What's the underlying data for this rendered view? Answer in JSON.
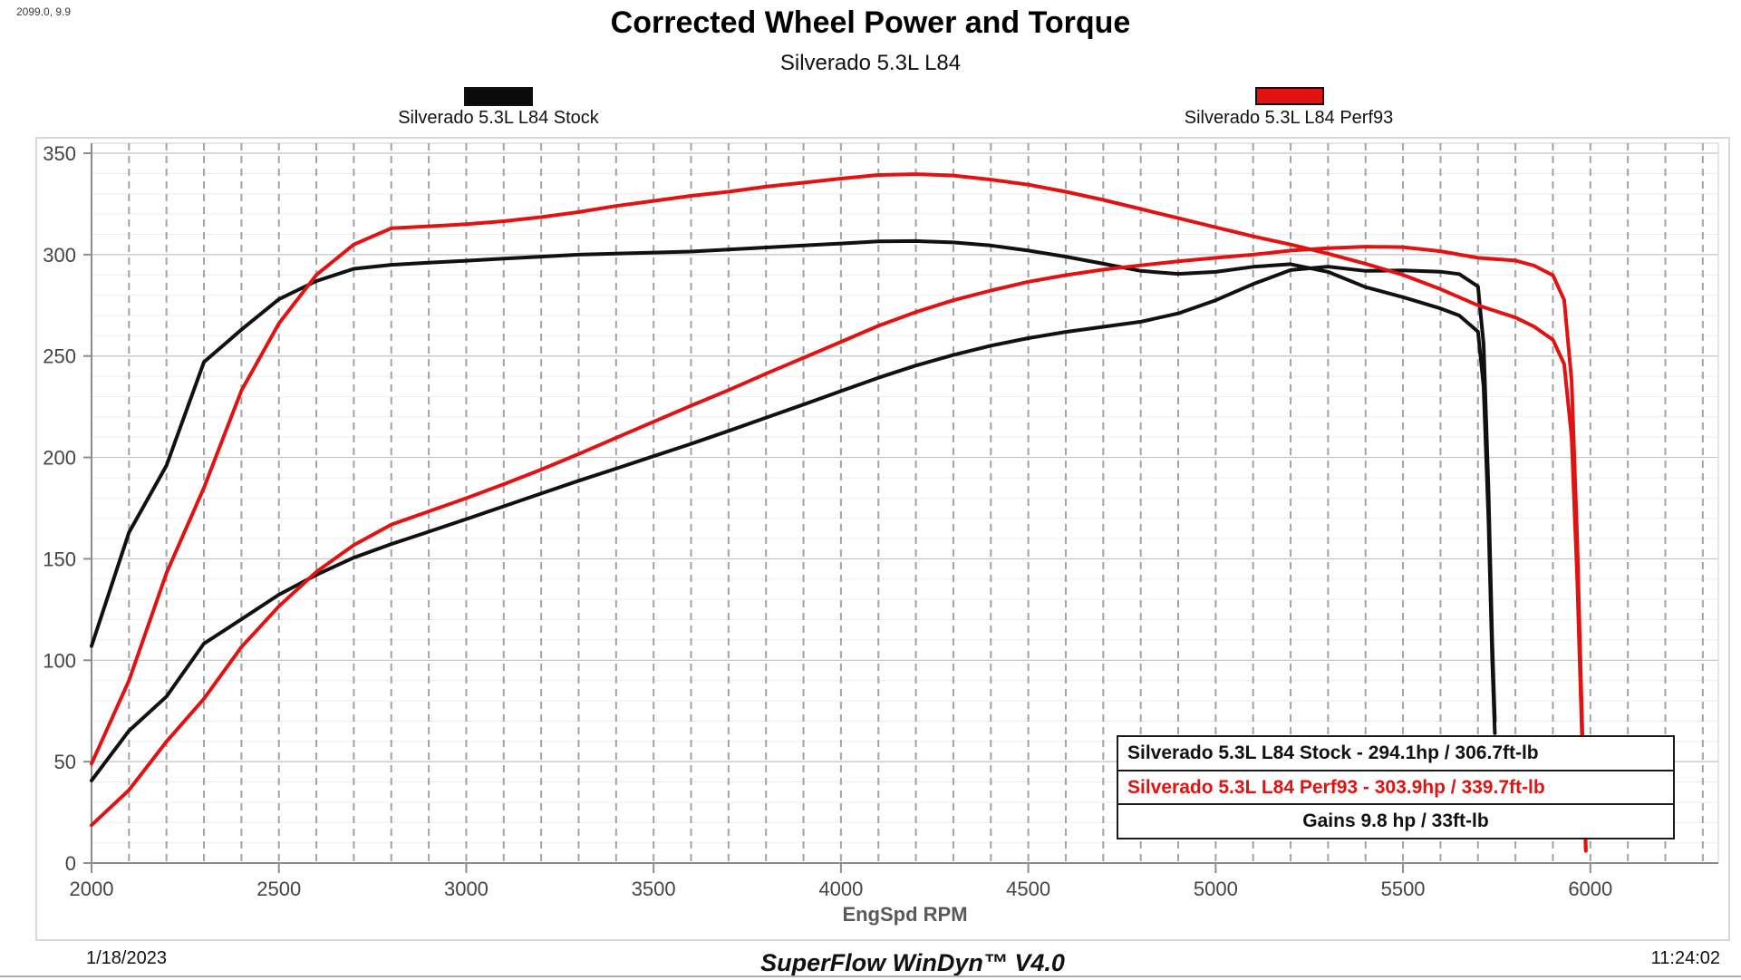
{
  "cursor_readout": "2099.0, 9.9",
  "header": {
    "title": "Corrected Wheel Power and Torque",
    "subtitle": "Silverado 5.3L L84"
  },
  "colors": {
    "stock": "#111111",
    "perf93": "#e11212",
    "axis": "#8c8c8c",
    "tick_label": "#444444",
    "major_grid": "#c3c3c3",
    "minor_grid": "#ededed",
    "dashed_grid": "#a3a3a3",
    "panel_border": "#cccccc"
  },
  "legend": [
    {
      "label": "Silverado 5.3L L84 Stock",
      "color": "#111111"
    },
    {
      "label": "Silverado 5.3L L84 Perf93",
      "color": "#e11212"
    }
  ],
  "info_box": {
    "rows": [
      {
        "text": "Silverado 5.3L L84 Stock - 294.1hp / 306.7ft-lb",
        "color": "#111111",
        "align": "left"
      },
      {
        "text": "Silverado 5.3L L84 Perf93 - 303.9hp / 339.7ft-lb",
        "color": "#e11212",
        "align": "left"
      },
      {
        "text": "Gains 9.8 hp / 33ft-lb",
        "color": "#111111",
        "align": "center"
      }
    ]
  },
  "footer": {
    "date": "1/18/2023",
    "app": "SuperFlow WinDyn™ V4.0",
    "time": "11:24:02"
  },
  "chart_data": {
    "type": "line",
    "title": "Corrected Wheel Power and Torque",
    "subtitle": "Silverado 5.3L L84",
    "xlabel": "EngSpd RPM",
    "ylabel": "",
    "xlim": [
      2000,
      6340
    ],
    "ylim": [
      0,
      355
    ],
    "x_ticks": [
      2000,
      2500,
      3000,
      3500,
      4000,
      4500,
      5000,
      5500,
      6000
    ],
    "y_ticks": [
      0,
      50,
      100,
      150,
      200,
      250,
      300,
      350
    ],
    "grid": {
      "minor_y_step": 10,
      "major_y_step": 50,
      "vline_step_rpm": 100,
      "vline_style": "dashed",
      "legend_position": "top"
    },
    "series": [
      {
        "name": "Silverado 5.3L L84 Stock",
        "measure": "torque (ft-lb)",
        "color": "#111111",
        "peak": 306.7,
        "points": [
          [
            2000,
            107
          ],
          [
            2100,
            163
          ],
          [
            2200,
            196
          ],
          [
            2300,
            247
          ],
          [
            2400,
            263
          ],
          [
            2500,
            278
          ],
          [
            2600,
            287
          ],
          [
            2700,
            293
          ],
          [
            2800,
            295
          ],
          [
            2900,
            296
          ],
          [
            3000,
            297
          ],
          [
            3100,
            298
          ],
          [
            3200,
            299
          ],
          [
            3300,
            300
          ],
          [
            3400,
            300.5
          ],
          [
            3500,
            301
          ],
          [
            3600,
            301.5
          ],
          [
            3700,
            302.5
          ],
          [
            3800,
            303.5
          ],
          [
            3900,
            304.5
          ],
          [
            4000,
            305.5
          ],
          [
            4100,
            306.5
          ],
          [
            4200,
            306.7
          ],
          [
            4300,
            306
          ],
          [
            4400,
            304.5
          ],
          [
            4500,
            302
          ],
          [
            4600,
            299
          ],
          [
            4700,
            295.5
          ],
          [
            4800,
            292
          ],
          [
            4900,
            290.5
          ],
          [
            5000,
            291.5
          ],
          [
            5100,
            294
          ],
          [
            5200,
            295.3
          ],
          [
            5300,
            291.5
          ],
          [
            5400,
            284
          ],
          [
            5500,
            279
          ],
          [
            5600,
            273.5
          ],
          [
            5650,
            270
          ],
          [
            5700,
            262
          ],
          [
            5715,
            235
          ],
          [
            5728,
            170
          ],
          [
            5738,
            100
          ],
          [
            5745,
            64
          ]
        ]
      },
      {
        "name": "Silverado 5.3L L84 Stock",
        "measure": "power (hp)",
        "color": "#111111",
        "peak": 294.1,
        "points": [
          [
            2000,
            40.7
          ],
          [
            2100,
            65.2
          ],
          [
            2200,
            82.1
          ],
          [
            2300,
            108.2
          ],
          [
            2400,
            120.2
          ],
          [
            2500,
            132.3
          ],
          [
            2600,
            142.1
          ],
          [
            2700,
            150.6
          ],
          [
            2800,
            157.3
          ],
          [
            2900,
            163.4
          ],
          [
            3000,
            169.6
          ],
          [
            3100,
            175.9
          ],
          [
            3200,
            182.2
          ],
          [
            3300,
            188.5
          ],
          [
            3400,
            194.5
          ],
          [
            3500,
            200.6
          ],
          [
            3600,
            206.7
          ],
          [
            3700,
            213.1
          ],
          [
            3800,
            219.6
          ],
          [
            3900,
            226.1
          ],
          [
            4000,
            232.7
          ],
          [
            4100,
            239.3
          ],
          [
            4200,
            245.3
          ],
          [
            4300,
            250.5
          ],
          [
            4400,
            255.1
          ],
          [
            4500,
            258.8
          ],
          [
            4600,
            261.9
          ],
          [
            4700,
            264.4
          ],
          [
            4800,
            266.9
          ],
          [
            4900,
            271.0
          ],
          [
            5000,
            277.5
          ],
          [
            5100,
            285.5
          ],
          [
            5200,
            292.4
          ],
          [
            5300,
            294.1
          ],
          [
            5400,
            292.0
          ],
          [
            5500,
            292.2
          ],
          [
            5600,
            291.6
          ],
          [
            5650,
            290.4
          ],
          [
            5700,
            284.3
          ],
          [
            5715,
            255.7
          ],
          [
            5728,
            185.4
          ],
          [
            5738,
            109.3
          ],
          [
            5745,
            70.0
          ]
        ]
      },
      {
        "name": "Silverado 5.3L L84 Perf93",
        "measure": "torque (ft-lb)",
        "color": "#e11212",
        "peak": 339.7,
        "points": [
          [
            2000,
            49
          ],
          [
            2100,
            90
          ],
          [
            2200,
            143
          ],
          [
            2300,
            185
          ],
          [
            2400,
            233
          ],
          [
            2500,
            266
          ],
          [
            2600,
            290
          ],
          [
            2700,
            305
          ],
          [
            2800,
            313
          ],
          [
            2900,
            314
          ],
          [
            3000,
            315
          ],
          [
            3100,
            316.5
          ],
          [
            3200,
            318.5
          ],
          [
            3300,
            321
          ],
          [
            3400,
            324
          ],
          [
            3500,
            326.5
          ],
          [
            3600,
            329
          ],
          [
            3700,
            331
          ],
          [
            3800,
            333.5
          ],
          [
            3900,
            335.5
          ],
          [
            4000,
            337.5
          ],
          [
            4100,
            339.3
          ],
          [
            4200,
            339.7
          ],
          [
            4300,
            339
          ],
          [
            4400,
            337
          ],
          [
            4500,
            334.5
          ],
          [
            4600,
            331
          ],
          [
            4700,
            327
          ],
          [
            4800,
            322.5
          ],
          [
            4900,
            318
          ],
          [
            5000,
            313.5
          ],
          [
            5100,
            309
          ],
          [
            5200,
            305
          ],
          [
            5300,
            300.5
          ],
          [
            5400,
            295.5
          ],
          [
            5500,
            290
          ],
          [
            5600,
            283
          ],
          [
            5700,
            275
          ],
          [
            5800,
            269
          ],
          [
            5850,
            264.5
          ],
          [
            5900,
            258
          ],
          [
            5930,
            246
          ],
          [
            5950,
            210
          ],
          [
            5965,
            140
          ],
          [
            5978,
            60
          ],
          [
            5988,
            6
          ]
        ]
      },
      {
        "name": "Silverado 5.3L L84 Perf93",
        "measure": "power (hp)",
        "color": "#e11212",
        "peak": 303.9,
        "points": [
          [
            2000,
            18.7
          ],
          [
            2100,
            36.0
          ],
          [
            2200,
            59.9
          ],
          [
            2300,
            81.0
          ],
          [
            2400,
            106.5
          ],
          [
            2500,
            126.6
          ],
          [
            2600,
            143.6
          ],
          [
            2700,
            156.8
          ],
          [
            2800,
            166.9
          ],
          [
            2900,
            173.4
          ],
          [
            3000,
            179.9
          ],
          [
            3100,
            186.8
          ],
          [
            3200,
            194.0
          ],
          [
            3300,
            201.7
          ],
          [
            3400,
            209.7
          ],
          [
            3500,
            217.6
          ],
          [
            3600,
            225.5
          ],
          [
            3700,
            233.2
          ],
          [
            3800,
            241.3
          ],
          [
            3900,
            249.1
          ],
          [
            4000,
            257.0
          ],
          [
            4100,
            264.9
          ],
          [
            4200,
            271.7
          ],
          [
            4300,
            277.5
          ],
          [
            4400,
            282.3
          ],
          [
            4500,
            286.6
          ],
          [
            4600,
            289.9
          ],
          [
            4700,
            292.6
          ],
          [
            4800,
            294.7
          ],
          [
            4900,
            296.7
          ],
          [
            5000,
            298.4
          ],
          [
            5100,
            300.0
          ],
          [
            5200,
            302.0
          ],
          [
            5300,
            303.2
          ],
          [
            5400,
            303.9
          ],
          [
            5500,
            303.7
          ],
          [
            5600,
            301.7
          ],
          [
            5700,
            298.4
          ],
          [
            5800,
            297.1
          ],
          [
            5850,
            294.6
          ],
          [
            5900,
            289.8
          ],
          [
            5930,
            277.7
          ],
          [
            5950,
            237.9
          ],
          [
            5965,
            159.0
          ],
          [
            5978,
            68.3
          ],
          [
            5988,
            6.8
          ]
        ]
      }
    ]
  }
}
